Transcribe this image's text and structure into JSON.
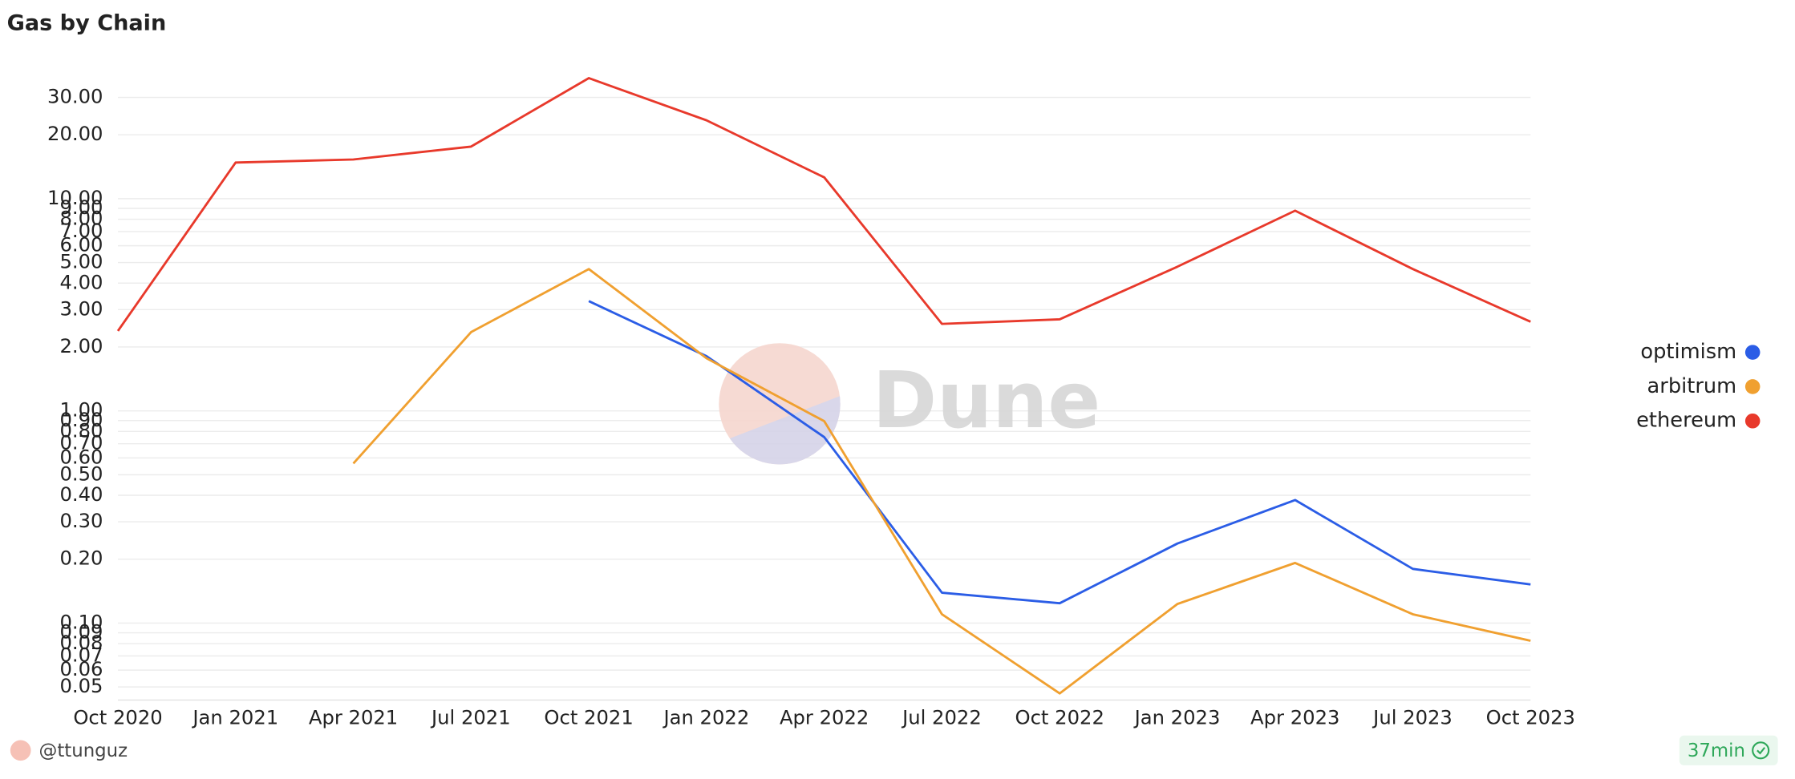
{
  "chart_data": {
    "type": "line",
    "title": "Gas by Chain",
    "categories": [
      "Oct 2020",
      "Jan 2021",
      "Apr 2021",
      "Jul 2021",
      "Oct 2021",
      "Jan 2022",
      "Apr 2022",
      "Jul 2022",
      "Oct 2022",
      "Jan 2023",
      "Apr 2023",
      "Jul 2023",
      "Oct 2023"
    ],
    "series": [
      {
        "name": "optimism",
        "color": "#2b5de6",
        "values": [
          null,
          null,
          null,
          null,
          3.29,
          1.81,
          0.752,
          0.139,
          0.124,
          0.237,
          0.38,
          0.18,
          0.152
        ]
      },
      {
        "name": "arbitrum",
        "color": "#f0a030",
        "values": [
          null,
          null,
          0.565,
          2.35,
          4.66,
          1.77,
          0.894,
          0.11,
          0.0466,
          0.123,
          0.192,
          0.11,
          0.0825
        ]
      },
      {
        "name": "ethereum",
        "color": "#e8392b",
        "values": [
          2.38,
          14.8,
          15.3,
          17.6,
          37,
          23.4,
          12.6,
          2.57,
          2.7,
          4.78,
          8.78,
          4.66,
          2.63
        ]
      }
    ],
    "log_scale": true,
    "grid": true,
    "legend": "right",
    "ylim": [
      0.045,
      40
    ],
    "yticks": [
      {
        "value": 0.05,
        "label": "0.05"
      },
      {
        "value": 0.06,
        "label": "0.06"
      },
      {
        "value": 0.07,
        "label": "0.07"
      },
      {
        "value": 0.08,
        "label": "0.08"
      },
      {
        "value": 0.09,
        "label": "0.09"
      },
      {
        "value": 0.1,
        "label": "0.10"
      },
      {
        "value": 0.2,
        "label": "0.20"
      },
      {
        "value": 0.3,
        "label": "0.30"
      },
      {
        "value": 0.4,
        "label": "0.40"
      },
      {
        "value": 0.5,
        "label": "0.50"
      },
      {
        "value": 0.6,
        "label": "0.60"
      },
      {
        "value": 0.7,
        "label": "0.70"
      },
      {
        "value": 0.8,
        "label": "0.80"
      },
      {
        "value": 0.9,
        "label": "0.90"
      },
      {
        "value": 1,
        "label": "1.00"
      },
      {
        "value": 2,
        "label": "2.00"
      },
      {
        "value": 3,
        "label": "3.00"
      },
      {
        "value": 4,
        "label": "4.00"
      },
      {
        "value": 5,
        "label": "5.00"
      },
      {
        "value": 6,
        "label": "6.00"
      },
      {
        "value": 7,
        "label": "7.00"
      },
      {
        "value": 8,
        "label": "8.00"
      },
      {
        "value": 9,
        "label": "9.00"
      },
      {
        "value": 10,
        "label": "10.00"
      },
      {
        "value": 20,
        "label": "20.00"
      },
      {
        "value": 30,
        "label": "30.00"
      }
    ],
    "watermark": "Dune",
    "author": "@ttunguz",
    "freshness": "37min"
  }
}
